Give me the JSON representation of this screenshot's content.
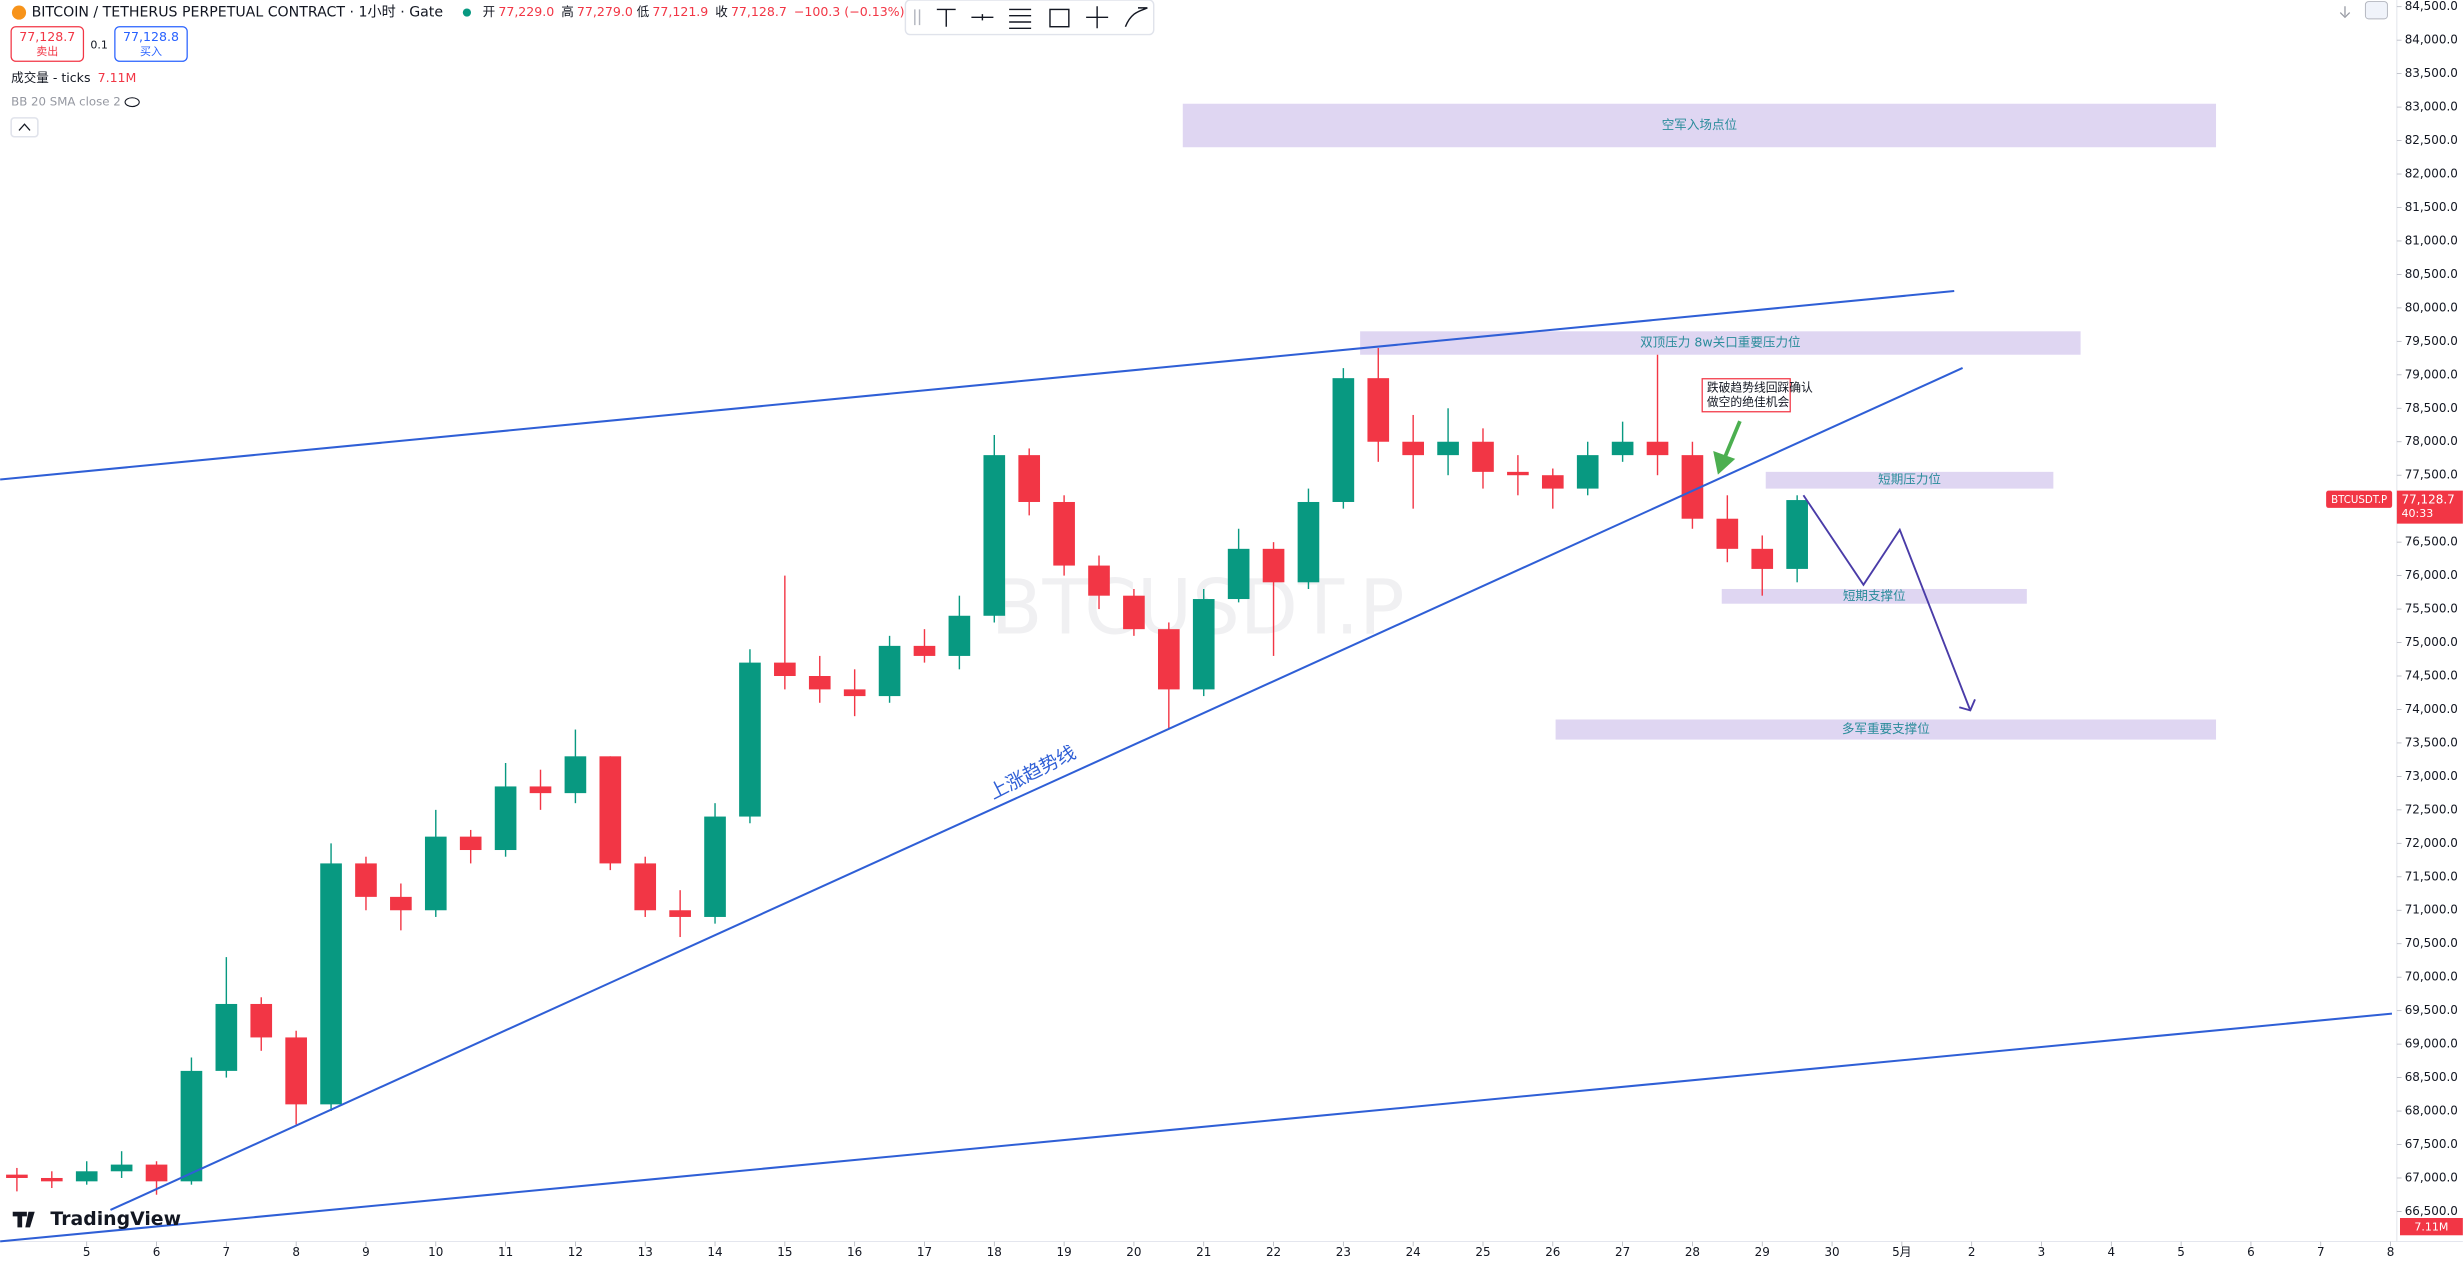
{
  "header": {
    "symbol": "BITCOIN / TETHERUS PERPETUAL CONTRACT · 1小时 · Gate",
    "open_label": "开",
    "open": "77,229.0",
    "high_label": "高",
    "high": "77,279.0",
    "low_label": "低",
    "low": "77,121.9",
    "close_label": "收",
    "close": "77,128.7",
    "change": "−100.3 (−0.13%)",
    "sell_price": "77,128.7",
    "sell": "卖出",
    "qty": "0.1",
    "buy_price": "77,128.8",
    "buy": "买入",
    "volume_title": "成交量 - ticks",
    "volume_value": "7.11M",
    "indicator": "BB 20 SMA close 2",
    "logo": "TradingView"
  },
  "chart_data": {
    "type": "candlestick",
    "up_color": "#089981",
    "down_color": "#f23645",
    "grid": false,
    "x": [
      4,
      4.5,
      5,
      5.5,
      6,
      6.5,
      7,
      7.5,
      8,
      8.5,
      9,
      9.5,
      10,
      10.5,
      11,
      11.5,
      12,
      12.5,
      13,
      13.5,
      14,
      14.5,
      15,
      15.5,
      16,
      16.5,
      17,
      17.5,
      18,
      18.5,
      19,
      19.5,
      20,
      20.5,
      21,
      21.5,
      22,
      22.5,
      23,
      23.5,
      24,
      24.5,
      25,
      25.5,
      26,
      26.5,
      27,
      27.5,
      28,
      28.5,
      29,
      29.5
    ],
    "open": [
      67050,
      67000,
      66950,
      67100,
      67200,
      66950,
      68600,
      69600,
      69100,
      68100,
      71700,
      71200,
      71000,
      72100,
      71900,
      72850,
      72750,
      73300,
      71700,
      71000,
      70900,
      72400,
      74700,
      74500,
      74300,
      74200,
      74950,
      74800,
      75400,
      77800,
      77100,
      76150,
      75700,
      75200,
      74300,
      75650,
      76400,
      75900,
      77100,
      78950,
      78000,
      77800,
      78000,
      77550,
      77500,
      77300,
      77800,
      78000,
      77800,
      76850,
      76400,
      76100
    ],
    "high": [
      67150,
      67100,
      67250,
      67400,
      67250,
      68800,
      70300,
      69700,
      69200,
      72000,
      71800,
      71400,
      72500,
      72200,
      73200,
      73100,
      73700,
      73300,
      71800,
      71300,
      72600,
      74900,
      76000,
      74800,
      74600,
      75100,
      75200,
      75700,
      78100,
      77900,
      77200,
      76300,
      75800,
      75300,
      75800,
      76700,
      76500,
      77300,
      79100,
      79400,
      78400,
      78500,
      78200,
      77800,
      77600,
      78000,
      78300,
      79300,
      78000,
      77200,
      76600,
      77200
    ],
    "low": [
      66800,
      66850,
      66900,
      67000,
      66750,
      66900,
      68500,
      68900,
      67800,
      68000,
      71000,
      70700,
      70900,
      71700,
      71800,
      72500,
      72600,
      71600,
      70900,
      70600,
      70800,
      72300,
      74300,
      74100,
      73900,
      74100,
      74700,
      74600,
      75300,
      76900,
      76000,
      75500,
      75100,
      73700,
      74200,
      75600,
      74800,
      75800,
      77000,
      77700,
      77000,
      77500,
      77300,
      77200,
      77000,
      77200,
      77700,
      77500,
      76700,
      76200,
      75700,
      75900
    ],
    "close": [
      67000,
      66950,
      67100,
      67200,
      66950,
      68600,
      69600,
      69100,
      68100,
      71700,
      71200,
      71000,
      72100,
      71900,
      72850,
      72750,
      73300,
      71700,
      71000,
      70900,
      72400,
      74700,
      74500,
      74300,
      74200,
      74950,
      74800,
      75400,
      77800,
      77100,
      76150,
      75700,
      75200,
      74300,
      75650,
      76400,
      75900,
      77100,
      78950,
      78000,
      77800,
      78000,
      77550,
      77500,
      77300,
      77800,
      78000,
      77800,
      76850,
      76400,
      76100,
      77128.7
    ],
    "xlim": [
      3.76,
      38.09
    ],
    "ylim": [
      66050,
      84600
    ],
    "xticks": [
      5,
      6,
      7,
      8,
      9,
      10,
      11,
      12,
      13,
      14,
      15,
      16,
      17,
      18,
      19,
      20,
      21,
      22,
      23,
      24,
      25,
      26,
      27,
      28,
      29,
      30,
      {
        "value": 31,
        "label": "5月"
      },
      {
        "value": 32,
        "label": "2"
      },
      {
        "value": 33,
        "label": "3"
      },
      {
        "value": 34,
        "label": "4"
      },
      {
        "value": 35,
        "label": "5"
      },
      {
        "value": 36,
        "label": "6"
      },
      {
        "value": 37,
        "label": "7"
      },
      {
        "value": 38,
        "label": "8"
      }
    ],
    "yticks": [
      {
        "value": 66500,
        "label": "66,500.0"
      },
      {
        "value": 67000,
        "label": "67,000.0"
      },
      {
        "value": 67500,
        "label": "67,500.0"
      },
      {
        "value": 68000,
        "label": "68,000.0"
      },
      {
        "value": 68500,
        "label": "68,500.0"
      },
      {
        "value": 69000,
        "label": "69,000.0"
      },
      {
        "value": 69500,
        "label": "69,500.0"
      },
      {
        "value": 70000,
        "label": "70,000.0"
      },
      {
        "value": 70500,
        "label": "70,500.0"
      },
      {
        "value": 71000,
        "label": "71,000.0"
      },
      {
        "value": 71500,
        "label": "71,500.0"
      },
      {
        "value": 72000,
        "label": "72,000.0"
      },
      {
        "value": 72500,
        "label": "72,500.0"
      },
      {
        "value": 73000,
        "label": "73,000.0"
      },
      {
        "value": 73500,
        "label": "73,500.0"
      },
      {
        "value": 74000,
        "label": "74,000.0"
      },
      {
        "value": 74500,
        "label": "74,500.0"
      },
      {
        "value": 75000,
        "label": "75,000.0"
      },
      {
        "value": 75500,
        "label": "75,500.0"
      },
      {
        "value": 76000,
        "label": "76,000.0"
      },
      {
        "value": 76500,
        "label": "76,500.0"
      },
      {
        "value": 77000,
        "label": "77,000.0"
      },
      {
        "value": 77500,
        "label": "77,500.0"
      },
      {
        "value": 78000,
        "label": "78,000.0"
      },
      {
        "value": 78500,
        "label": "78,500.0"
      },
      {
        "value": 79000,
        "label": "79,000.0"
      },
      {
        "value": 79500,
        "label": "79,500.0"
      },
      {
        "value": 80000,
        "label": "80,000.0"
      },
      {
        "value": 80500,
        "label": "80,500.0"
      },
      {
        "value": 81000,
        "label": "81,000.0"
      },
      {
        "value": 81500,
        "label": "81,500.0"
      },
      {
        "value": 82000,
        "label": "82,000.0"
      },
      {
        "value": 82500,
        "label": "82,500.0"
      },
      {
        "value": 83000,
        "label": "83,000.0"
      },
      {
        "value": 83500,
        "label": "83,500.0"
      },
      {
        "value": 84000,
        "label": "84,000.0"
      },
      {
        "value": 84500,
        "label": "84,500.0"
      }
    ],
    "zones": [
      {
        "label": "空军入场点位",
        "x": [
          20.7,
          35.5
        ],
        "y": [
          82400,
          83050
        ]
      },
      {
        "label": "双顶压力 8w关口重要压力位",
        "x": [
          23.24,
          33.56
        ],
        "y": [
          79300,
          79650
        ]
      },
      {
        "label": "短期压力位",
        "x": [
          29.05,
          33.17
        ],
        "y": [
          77300,
          77550
        ]
      },
      {
        "label": "短期支撑位",
        "x": [
          28.42,
          32.79
        ],
        "y": [
          75580,
          75800
        ]
      },
      {
        "label": "多军重要支撑位",
        "x": [
          26.04,
          35.5
        ],
        "y": [
          73550,
          73850
        ]
      }
    ],
    "zone_color": "#d9cff0",
    "zone_text_color": "#2a8c9b",
    "trendlines": [
      {
        "x": [
          3.76,
          31.75
        ],
        "y": [
          77436,
          80252
        ]
      },
      {
        "x": [
          5.34,
          31.87
        ],
        "y": [
          66522,
          79102
        ]
      },
      {
        "x": [
          3.76,
          38.02
        ],
        "y": [
          66053,
          69456
        ]
      }
    ],
    "trendline_color": "#2f5fd6",
    "projection": {
      "x": [
        29.59,
        30.45,
        30.97,
        31.98
      ],
      "y": [
        77201,
        75863,
        76685,
        73986
      ],
      "color": "#4a3ca8"
    },
    "trend_label": "上涨趋势线",
    "callout": [
      "跌破趋势线回踩确认",
      "做空的绝佳机会"
    ],
    "watermark": "BTCUSDT.P",
    "last_price": {
      "value": 77128.7,
      "label": "77,128.7"
    },
    "countdown": "40:33"
  }
}
